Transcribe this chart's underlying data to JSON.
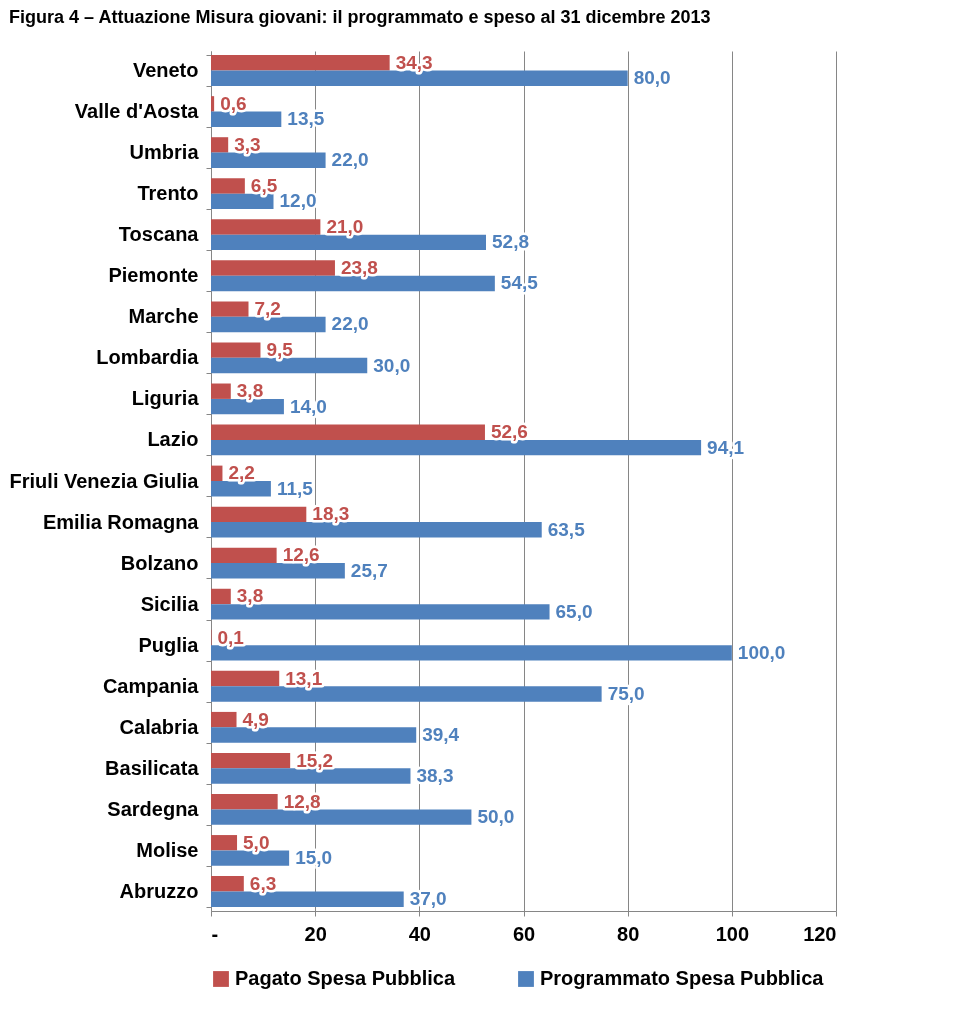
{
  "chart_data": {
    "type": "bar",
    "orientation": "horizontal",
    "title": "Figura 4 – Attuazione Misura giovani: il programmato e speso al 31 dicembre 2013",
    "categories": [
      "Veneto",
      "Valle d'Aosta",
      "Umbria",
      "Trento",
      "Toscana",
      "Piemonte",
      "Marche",
      "Lombardia",
      "Liguria",
      "Lazio",
      "Friuli Venezia Giulia",
      "Emilia Romagna",
      "Bolzano",
      "Sicilia",
      "Puglia",
      "Campania",
      "Calabria",
      "Basilicata",
      "Sardegna",
      "Molise",
      "Abruzzo"
    ],
    "series": [
      {
        "name": "Pagato Spesa Pubblica",
        "color": "#c0504d",
        "values": [
          34.3,
          0.6,
          3.3,
          6.5,
          21.0,
          23.8,
          7.2,
          9.5,
          3.8,
          52.6,
          2.2,
          18.3,
          12.6,
          3.8,
          0.1,
          13.1,
          4.9,
          15.2,
          12.8,
          5.0,
          6.3
        ],
        "value_labels": [
          "34,3",
          "0,6",
          "3,3",
          "6,5",
          "21,0",
          "23,8",
          "7,2",
          "9,5",
          "3,8",
          "52,6",
          "2,2",
          "18,3",
          "12,6",
          "3,8",
          "0,1",
          "13,1",
          "4,9",
          "15,2",
          "12,8",
          "5,0",
          "6,3"
        ]
      },
      {
        "name": "Programmato Spesa Pubblica",
        "color": "#4f81bd",
        "values": [
          80.0,
          13.5,
          22.0,
          12.0,
          52.8,
          54.5,
          22.0,
          30.0,
          14.0,
          94.1,
          11.5,
          63.5,
          25.7,
          65.0,
          100.0,
          75.0,
          39.4,
          38.3,
          50.0,
          15.0,
          37.0
        ],
        "value_labels": [
          "80,0",
          "13,5",
          "22,0",
          "12,0",
          "52,8",
          "54,5",
          "22,0",
          "30,0",
          "14,0",
          "94,1",
          "11,5",
          "63,5",
          "25,7",
          "65,0",
          "100,0",
          "75,0",
          "39,4",
          "38,3",
          "50,0",
          "15,0",
          "37,0"
        ]
      }
    ],
    "xlim": [
      0,
      120
    ],
    "xticks": [
      {
        "value": 0,
        "label": "-"
      },
      20,
      40,
      60,
      80,
      100,
      120
    ],
    "grid": "x",
    "legend": "bottom"
  }
}
